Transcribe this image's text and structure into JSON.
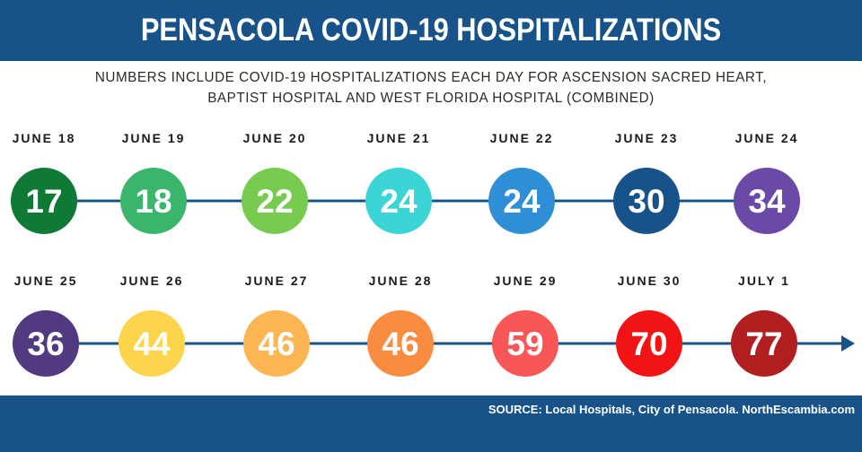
{
  "header": {
    "title": "PENSACOLA COVID-19 HOSPITALIZATIONS"
  },
  "subtitle": {
    "line1": "NUMBERS INCLUDE COVID-19 HOSPITALIZATIONS EACH DAY FOR ASCENSION SACRED HEART,",
    "line2": "BAPTIST HOSPITAL AND WEST FLORIDA HOSPITAL (COMBINED)"
  },
  "footer": {
    "source": "SOURCE: Local Hospitals, City of Pensacola. NorthEscambia.com"
  },
  "colors": {
    "brand": "#175389",
    "line": "#175389"
  },
  "chart_data": {
    "type": "timeline",
    "title": "PENSACOLA COVID-19 HOSPITALIZATIONS",
    "rows": 2,
    "points": [
      {
        "date": "JUNE 18",
        "value": 17,
        "color": "#0e7a35"
      },
      {
        "date": "JUNE 19",
        "value": 18,
        "color": "#3ab56c"
      },
      {
        "date": "JUNE 20",
        "value": 22,
        "color": "#77cc4f"
      },
      {
        "date": "JUNE 21",
        "value": 24,
        "color": "#3cd5d6"
      },
      {
        "date": "JUNE 22",
        "value": 24,
        "color": "#2e8ed6"
      },
      {
        "date": "JUNE 23",
        "value": 30,
        "color": "#17528a"
      },
      {
        "date": "JUNE 24",
        "value": 34,
        "color": "#6a4aa6"
      },
      {
        "date": "JUNE 25",
        "value": 36,
        "color": "#523a80"
      },
      {
        "date": "JUNE 26",
        "value": 44,
        "color": "#fdd54d"
      },
      {
        "date": "JUNE 27",
        "value": 46,
        "color": "#fbb653"
      },
      {
        "date": "JUNE 28",
        "value": 46,
        "color": "#fa8c40"
      },
      {
        "date": "JUNE 29",
        "value": 59,
        "color": "#f85757"
      },
      {
        "date": "JUNE 30",
        "value": 70,
        "color": "#f21414"
      },
      {
        "date": "JULY 1",
        "value": 77,
        "color": "#b11f20"
      }
    ]
  }
}
